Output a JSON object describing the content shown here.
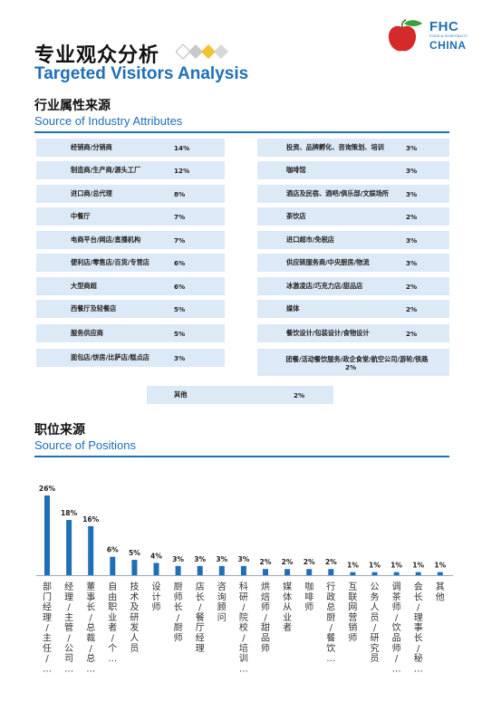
{
  "header": {
    "title_cn": "专业观众分析",
    "title_en": "Targeted Visitors Analysis"
  },
  "logo": {
    "brand": "FHC",
    "sub": "FOOD & HOSPITALITY",
    "country": "CHINA"
  },
  "industry": {
    "title_cn": "行业属性来源",
    "title_en": "Source of Industry Attributes",
    "left": [
      {
        "label": "经销商/分销商",
        "value": "14%"
      },
      {
        "label": "制造商/生产商/源头工厂",
        "value": "12%"
      },
      {
        "label": "进口商/总代理",
        "value": "8%"
      },
      {
        "label": "中餐厅",
        "value": "7%"
      },
      {
        "label": "电商平台/网店/直播机构",
        "value": "7%"
      },
      {
        "label": "便利店/零售店/百货/专营店",
        "value": "6%"
      },
      {
        "label": "大型商超",
        "value": "6%"
      },
      {
        "label": "西餐厅及轻餐店",
        "value": "5%"
      },
      {
        "label": "服务供应商",
        "value": "5%"
      },
      {
        "label": "面包店/饼房/比萨店/糕点店",
        "value": "3%"
      }
    ],
    "right": [
      {
        "label": "投资、品牌孵化、咨询策划、培训",
        "value": "3%"
      },
      {
        "label": "咖啡馆",
        "value": "3%"
      },
      {
        "label": "酒店及民宿、酒吧/俱乐部/文娱场所",
        "value": "3%"
      },
      {
        "label": "茶饮店",
        "value": "2%"
      },
      {
        "label": "进口超市/免税店",
        "value": "3%"
      },
      {
        "label": "供应链服务商/中央厨房/物流",
        "value": "3%"
      },
      {
        "label": "冰激凌店/巧克力店/甜品店",
        "value": "2%"
      },
      {
        "label": "媒体",
        "value": "2%"
      },
      {
        "label": "餐饮设计/包装设计/食物设计",
        "value": "2%"
      },
      {
        "label": "团餐/活动餐饮服务/政企食堂/航空公司/游轮/铁路",
        "value": "2%"
      }
    ],
    "bottom": {
      "label": "其他",
      "value": "2%"
    }
  },
  "positions": {
    "title_cn": "职位来源",
    "title_en": "Source of Positions"
  },
  "chart_data": {
    "type": "bar",
    "categories": [
      "部门经理/主任/…",
      "经理/主管/公司…",
      "董事长/总裁/总…",
      "自由职业者/个…",
      "技术及研发人员",
      "设计师",
      "厨师长/厨师",
      "店长/餐厅经理",
      "咨询顾问",
      "科研/院校/培训…",
      "烘焙师/甜品师",
      "媒体从业者",
      "咖啡师",
      "行政总厨/餐饮…",
      "互联网营销师",
      "公务人员/研究员",
      "调茶师/饮品师/…",
      "会长/理事长/秘…",
      "其他"
    ],
    "values": [
      26,
      18,
      16,
      6,
      5,
      4,
      3,
      3,
      3,
      3,
      2,
      2,
      2,
      2,
      1,
      1,
      1,
      1,
      1
    ],
    "labels": [
      "26%",
      "18%",
      "16%",
      "6%",
      "5%",
      "4%",
      "3%",
      "3%",
      "3%",
      "3%",
      "2%",
      "2%",
      "2%",
      "2%",
      "1%",
      "1%",
      "1%",
      "1%",
      "1%"
    ],
    "ylim": [
      0,
      26
    ],
    "color": "#1f6fb8",
    "grid": false,
    "title": "",
    "xlabel": "",
    "ylabel": ""
  }
}
